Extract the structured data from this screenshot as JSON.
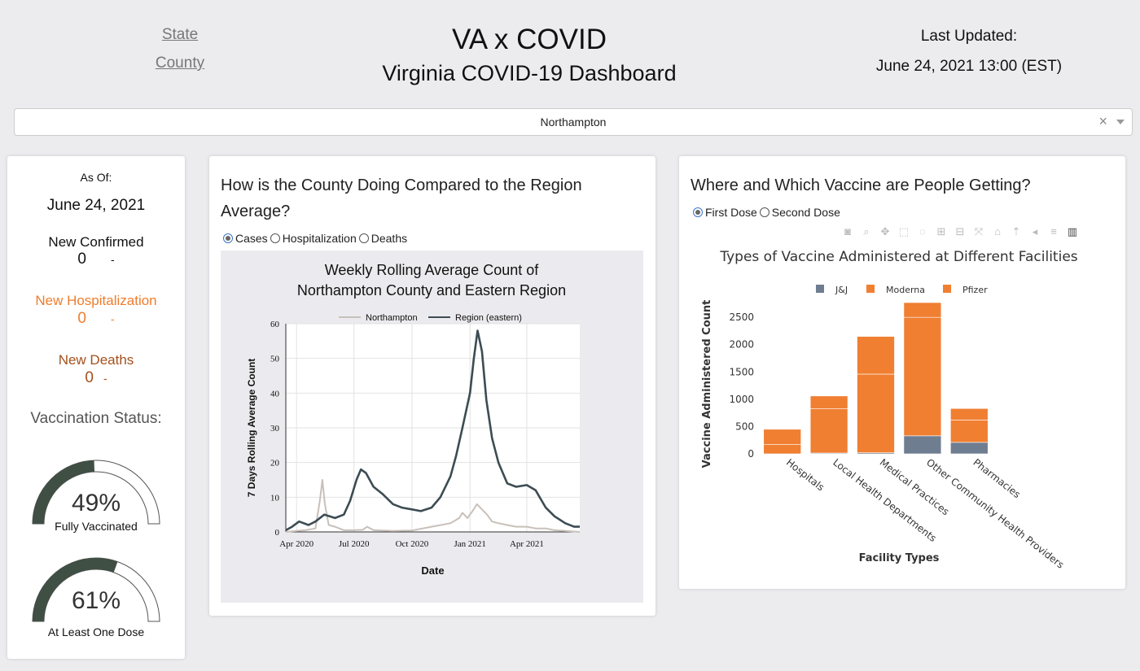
{
  "nav": {
    "state": "State",
    "county": "County"
  },
  "header": {
    "title": "VA x COVID",
    "subtitle": "Virginia COVID-19 Dashboard",
    "updated_label": "Last Updated:",
    "updated_value": "June 24, 2021 13:00 (EST)"
  },
  "county_select": {
    "value": "Northampton",
    "clear": "×"
  },
  "stats": {
    "asof_label": "As Of:",
    "asof_value": "June 24, 2021",
    "confirmed": {
      "label": "New Confirmed",
      "value": "0",
      "change": "-",
      "color": "#111111"
    },
    "hospitalization": {
      "label": "New Hospitalization",
      "value": "0",
      "change": "-",
      "color": "#f07c2c"
    },
    "deaths": {
      "label": "New Deaths",
      "value": "0",
      "change": "-",
      "color": "#a4501c"
    },
    "vaccination_title": "Vaccination Status:",
    "fully": {
      "value": 0.49,
      "text": "49%",
      "caption": "Fully Vaccinated"
    },
    "one_dose": {
      "value": 0.61,
      "text": "61%",
      "caption": "At Least One Dose"
    },
    "gauge_color": "#3f4f44"
  },
  "trend": {
    "title_line1": "How is the County Doing Compared to the Region",
    "title_line2": "Average?",
    "radios": [
      {
        "label": "Cases",
        "checked": true
      },
      {
        "label": "Hospitalization",
        "checked": false
      },
      {
        "label": "Deaths",
        "checked": false
      }
    ]
  },
  "vaccine": {
    "title": "Where and Which Vaccine are People Getting?",
    "radios": [
      {
        "label": "First Dose",
        "checked": true
      },
      {
        "label": "Second Dose",
        "checked": false
      }
    ],
    "modebar": [
      "camera-icon",
      "zoom-icon",
      "pan-icon",
      "box-select-icon",
      "lasso-icon",
      "zoom-in-icon",
      "zoom-out-icon",
      "autoscale-icon",
      "home-icon",
      "spike-icon",
      "hover-closest-icon",
      "hover-compare-icon",
      "plotly-logo-icon"
    ]
  },
  "chart_data": [
    {
      "type": "line",
      "title": "Weekly Rolling Average Count of\nNorthampton County and Eastern Region",
      "title_lines": [
        "Weekly Rolling Average Count of",
        "Northampton County and Eastern Region"
      ],
      "xlabel": "Date",
      "ylabel": "7 Days Rolling Average Count",
      "ylim": [
        0,
        60
      ],
      "yticks": [
        0,
        10,
        20,
        30,
        40,
        50,
        60
      ],
      "xlim": [
        "2020-03-15",
        "2021-06-24"
      ],
      "xticks": [
        {
          "date": "2020-04-01",
          "label": "Apr 2020"
        },
        {
          "date": "2020-07-01",
          "label": "Jul 2020"
        },
        {
          "date": "2020-10-01",
          "label": "Oct 2020"
        },
        {
          "date": "2021-01-01",
          "label": "Jan 2021"
        },
        {
          "date": "2021-04-01",
          "label": "Apr 2021"
        }
      ],
      "grid": true,
      "legend": "top",
      "series": [
        {
          "name": "Northampton",
          "color": "#c8c0ba",
          "x": [
            "2020-03-15",
            "2020-04-01",
            "2020-04-15",
            "2020-05-01",
            "2020-05-08",
            "2020-05-12",
            "2020-05-16",
            "2020-05-22",
            "2020-06-01",
            "2020-06-15",
            "2020-07-01",
            "2020-07-15",
            "2020-07-22",
            "2020-08-01",
            "2020-09-01",
            "2020-10-01",
            "2020-11-01",
            "2020-12-01",
            "2020-12-15",
            "2020-12-20",
            "2020-12-28",
            "2021-01-05",
            "2021-01-12",
            "2021-01-20",
            "2021-01-28",
            "2021-02-05",
            "2021-02-15",
            "2021-03-01",
            "2021-03-15",
            "2021-04-01",
            "2021-04-15",
            "2021-05-01",
            "2021-05-15",
            "2021-06-01",
            "2021-06-24"
          ],
          "y": [
            0,
            0.3,
            0.5,
            1,
            9,
            15,
            8,
            2,
            1.5,
            0.5,
            0.5,
            0.6,
            1.5,
            0.5,
            0.3,
            0.4,
            1.5,
            2.5,
            4,
            5.5,
            4,
            6,
            8,
            6.5,
            5,
            3,
            2.5,
            2,
            1.5,
            1.5,
            1,
            1,
            0.5,
            0.3,
            0
          ]
        },
        {
          "name": "Region (eastern)",
          "color": "#3c4c52",
          "x": [
            "2020-03-15",
            "2020-03-25",
            "2020-04-05",
            "2020-04-20",
            "2020-05-01",
            "2020-05-15",
            "2020-06-01",
            "2020-06-15",
            "2020-06-25",
            "2020-07-05",
            "2020-07-12",
            "2020-07-20",
            "2020-08-01",
            "2020-08-15",
            "2020-09-01",
            "2020-09-15",
            "2020-10-01",
            "2020-10-15",
            "2020-11-01",
            "2020-11-15",
            "2020-12-01",
            "2020-12-10",
            "2020-12-20",
            "2021-01-01",
            "2021-01-07",
            "2021-01-13",
            "2021-01-20",
            "2021-01-27",
            "2021-02-05",
            "2021-02-15",
            "2021-03-01",
            "2021-03-15",
            "2021-04-01",
            "2021-04-15",
            "2021-05-01",
            "2021-05-15",
            "2021-06-01",
            "2021-06-15",
            "2021-06-24"
          ],
          "y": [
            0.5,
            1.5,
            3,
            2,
            3,
            5,
            4,
            5,
            9,
            15,
            18,
            17,
            13,
            11,
            8,
            7,
            6.5,
            6,
            7,
            10,
            16,
            22,
            30,
            40,
            50,
            58,
            52,
            38,
            27,
            20,
            14,
            13,
            13.5,
            12,
            7,
            4.5,
            2.5,
            1.5,
            1.5
          ]
        }
      ]
    },
    {
      "type": "bar",
      "stacked": true,
      "title": "Types of Vaccine Administered at Different Facilities",
      "xlabel": "Facility Types",
      "ylabel": "Vaccine Administered Count",
      "ylim": [
        0,
        2800
      ],
      "yticks": [
        0,
        500,
        1000,
        1500,
        2000,
        2500
      ],
      "legend": "top",
      "categories": [
        "Hospitals",
        "Local Health Departments",
        "Medical Practices",
        "Other Community Health Providers",
        "Pharmacies"
      ],
      "series": [
        {
          "name": "J&J",
          "color": "#6f7d91",
          "values": [
            0,
            15,
            20,
            330,
            210
          ]
        },
        {
          "name": "Moderna",
          "color": "#f07f32",
          "values": [
            170,
            810,
            1440,
            2170,
            410
          ]
        },
        {
          "name": "Pfizer",
          "color": "#f07f32",
          "values": [
            280,
            235,
            690,
            270,
            210
          ]
        }
      ]
    }
  ]
}
